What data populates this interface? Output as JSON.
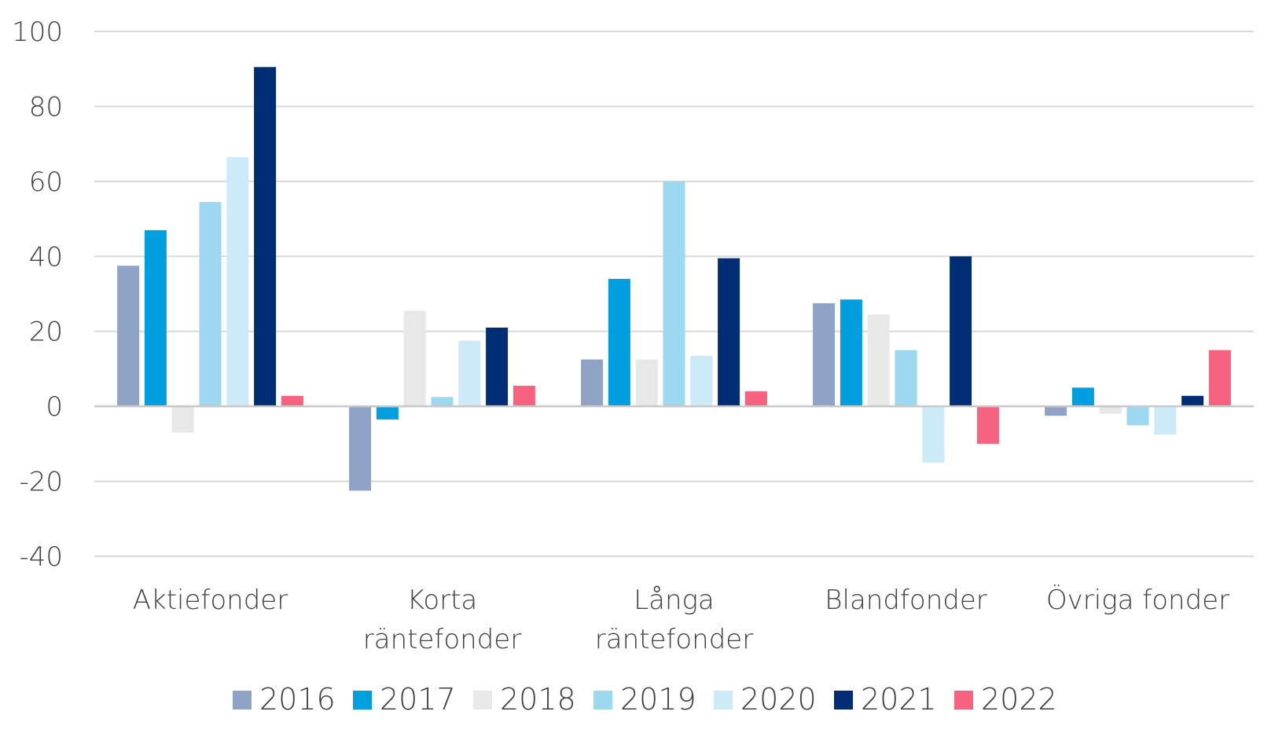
{
  "chart_data": {
    "type": "bar",
    "categories": [
      [
        "Aktiefonder"
      ],
      [
        "Korta",
        "räntefonder"
      ],
      [
        "Långa",
        "räntefonder"
      ],
      [
        "Blandfonder"
      ],
      [
        "Övriga fonder"
      ]
    ],
    "series": [
      {
        "name": "2016",
        "color": "#8ea3c6",
        "values": [
          37.5,
          -22.5,
          12.5,
          27.5,
          -2.5
        ]
      },
      {
        "name": "2017",
        "color": "#009fe0",
        "values": [
          47,
          -3.5,
          34,
          28.5,
          5
        ]
      },
      {
        "name": "2018",
        "color": "#e8e8e8",
        "values": [
          -7,
          25.5,
          12.5,
          24.5,
          -2
        ]
      },
      {
        "name": "2019",
        "color": "#9cd8f0",
        "values": [
          54.5,
          2.5,
          60,
          15,
          -5
        ]
      },
      {
        "name": "2020",
        "color": "#cdeaf8",
        "values": [
          66.5,
          17.5,
          13.5,
          -15,
          -7.5
        ]
      },
      {
        "name": "2021",
        "color": "#002d74",
        "values": [
          90.5,
          21,
          39.5,
          40,
          2.8
        ]
      },
      {
        "name": "2022",
        "color": "#f7637f",
        "values": [
          2.8,
          5.5,
          4,
          -10,
          15
        ]
      }
    ],
    "yticks": [
      "100",
      "80",
      "60",
      "40",
      "20",
      "0",
      "-20",
      "-40"
    ],
    "ylim": [
      -40,
      100
    ],
    "grid": true,
    "legend": "bottom",
    "title": "",
    "xlabel": "",
    "ylabel": ""
  }
}
